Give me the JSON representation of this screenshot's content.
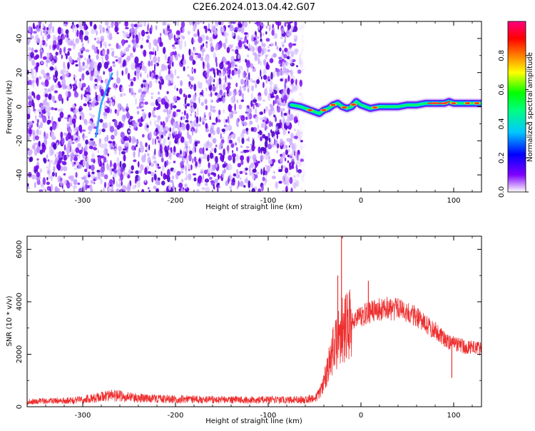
{
  "figure_title": "C2E6.2024.013.04.42.G07",
  "chart_data": [
    {
      "type": "heatmap",
      "title": "",
      "xlabel": "Height of straight line (km)",
      "ylabel": "Frequency (Hz)",
      "xlim": [
        -360,
        130
      ],
      "ylim": [
        -50,
        50
      ],
      "xticks": [
        -300,
        -200,
        -100,
        0,
        100
      ],
      "yticks": [
        -40,
        -20,
        0,
        20,
        40
      ],
      "xtick_labels": [
        "-300",
        "-200",
        "-100",
        "0",
        "100"
      ],
      "ytick_labels": [
        "-40",
        "-20",
        "0",
        "20",
        "40"
      ],
      "noise_region_x": [
        -360,
        -65
      ],
      "noise_fade_x": [
        -80,
        -60
      ],
      "signal_track": {
        "x": [
          -75,
          -65,
          -55,
          -50,
          -45,
          -40,
          -35,
          -30,
          -25,
          -20,
          -15,
          -10,
          -5,
          0,
          5,
          10,
          20,
          30,
          40,
          50,
          60,
          70,
          80,
          90,
          95,
          100,
          110,
          120,
          130
        ],
        "y": [
          1,
          0,
          -2,
          -3,
          -4,
          -2,
          -1,
          1,
          2,
          0,
          -1,
          0,
          3,
          1,
          0,
          -1,
          0,
          0,
          0,
          1,
          1,
          2,
          2,
          2,
          3,
          2,
          2,
          2,
          2
        ]
      },
      "streak": {
        "x": [
          -286,
          -284,
          -282,
          -280,
          -276,
          -272,
          -268
        ],
        "y": [
          -18,
          -12,
          -4,
          2,
          8,
          14,
          20
        ]
      },
      "colorbar": {
        "label": "Normalized spectral amplitude",
        "ticks": [
          0.0,
          0.2,
          0.4,
          0.6,
          0.8
        ],
        "tick_labels": [
          "0.0",
          "0.2",
          "0.4",
          "0.6",
          "0.8"
        ],
        "range": [
          0,
          1
        ],
        "colormap": [
          "#ffffff",
          "#7000f0",
          "#0000ff",
          "#00c8ff",
          "#00ff00",
          "#ffff00",
          "#ff8000",
          "#ff0000",
          "#ff0080"
        ]
      },
      "grid": false
    },
    {
      "type": "line",
      "title": "",
      "xlabel": "Height of straight line (km)",
      "ylabel": "SNR (10 * v/v)",
      "xlim": [
        -360,
        130
      ],
      "ylim": [
        0,
        6500
      ],
      "xticks": [
        -300,
        -200,
        -100,
        0,
        100
      ],
      "yticks": [
        0,
        2000,
        4000,
        6000
      ],
      "xtick_labels": [
        "-300",
        "-200",
        "-100",
        "0",
        "100"
      ],
      "ytick_labels": [
        "0",
        "2000",
        "4000",
        "6000"
      ],
      "color": "#ee3030",
      "grid": false,
      "envelope": {
        "x": [
          -360,
          -340,
          -320,
          -300,
          -290,
          -280,
          -270,
          -260,
          -240,
          -220,
          -200,
          -180,
          -160,
          -140,
          -120,
          -100,
          -80,
          -60,
          -50,
          -45,
          -40,
          -35,
          -30,
          -25,
          -20,
          -15,
          -10,
          -5,
          0,
          10,
          20,
          30,
          40,
          50,
          60,
          70,
          80,
          90,
          95,
          100,
          110,
          120,
          130
        ],
        "y": [
          200,
          220,
          230,
          260,
          320,
          380,
          420,
          400,
          330,
          300,
          290,
          280,
          270,
          260,
          260,
          260,
          260,
          280,
          320,
          500,
          900,
          1500,
          2100,
          2600,
          2900,
          3100,
          3300,
          3400,
          3450,
          3600,
          3700,
          3750,
          3700,
          3600,
          3400,
          3150,
          2900,
          2600,
          2450,
          2400,
          2300,
          2250,
          2200
        ]
      },
      "peaks": [
        {
          "x": -21,
          "y": 6500
        },
        {
          "x": -25,
          "y": 5000
        },
        {
          "x": 8,
          "y": 4800
        },
        {
          "x": 98,
          "y": 1100
        }
      ]
    }
  ]
}
